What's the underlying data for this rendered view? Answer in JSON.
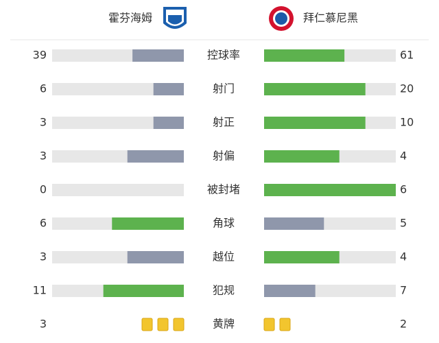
{
  "header": {
    "home": "霍芬海姆",
    "away": "拜仁慕尼黑"
  },
  "stats": [
    {
      "label": "控球率",
      "home": 39,
      "away": 61
    },
    {
      "label": "射门",
      "home": 6,
      "away": 20
    },
    {
      "label": "射正",
      "home": 3,
      "away": 10
    },
    {
      "label": "射偏",
      "home": 3,
      "away": 4
    },
    {
      "label": "被封堵",
      "home": 0,
      "away": 6
    },
    {
      "label": "角球",
      "home": 6,
      "away": 5
    },
    {
      "label": "越位",
      "home": 3,
      "away": 4
    },
    {
      "label": "犯规",
      "home": 11,
      "away": 7
    }
  ],
  "cards": {
    "label": "黄牌",
    "home": 3,
    "away": 2
  }
}
